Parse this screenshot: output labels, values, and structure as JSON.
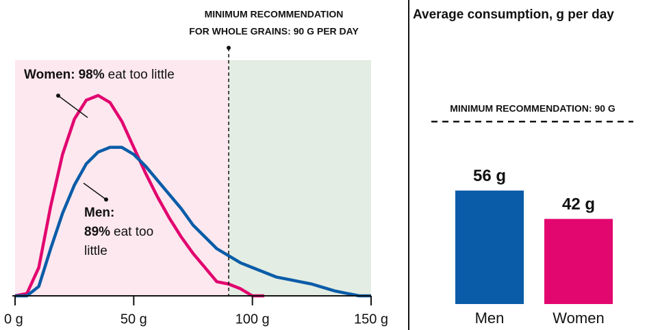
{
  "chart_data": [
    {
      "type": "line",
      "xlim": [
        0,
        150
      ],
      "xticks": [
        {
          "value": 0,
          "label": "0 g"
        },
        {
          "value": 50,
          "label": "50 g"
        },
        {
          "value": 100,
          "label": "100 g"
        },
        {
          "value": 150,
          "label": "150 g"
        }
      ],
      "ylim": [
        0,
        1
      ],
      "threshold": {
        "value": 90,
        "label_lines": [
          "MINIMUM RECOMMENDATION",
          "FOR  WHOLE GRAINS: 90 G PER DAY"
        ]
      },
      "regions": [
        {
          "from": 0,
          "to": 90,
          "color": "#fce8ee"
        },
        {
          "from": 90,
          "to": 150,
          "color": "#e3ede3"
        }
      ],
      "series": [
        {
          "name": "Women:",
          "color": "#e2066f",
          "share": "98%",
          "label_rest": "eat too little",
          "x": [
            0,
            5,
            10,
            15,
            20,
            25,
            30,
            35,
            40,
            45,
            50,
            55,
            60,
            65,
            70,
            75,
            80,
            85,
            90,
            95,
            100,
            105
          ],
          "values": [
            0,
            0.01,
            0.12,
            0.38,
            0.6,
            0.75,
            0.83,
            0.85,
            0.82,
            0.74,
            0.63,
            0.52,
            0.42,
            0.33,
            0.25,
            0.18,
            0.12,
            0.06,
            0.05,
            0.03,
            0,
            0
          ]
        },
        {
          "name": "Men:",
          "color": "#0a5ca8",
          "share": "89%",
          "label_rest": [
            "eat too",
            "little"
          ],
          "x": [
            0,
            5,
            10,
            15,
            20,
            25,
            30,
            35,
            40,
            45,
            50,
            55,
            60,
            65,
            70,
            75,
            80,
            85,
            90,
            95,
            100,
            105,
            110,
            115,
            120,
            125,
            130,
            135,
            140,
            145,
            150
          ],
          "values": [
            0,
            0,
            0.04,
            0.2,
            0.35,
            0.47,
            0.56,
            0.61,
            0.63,
            0.63,
            0.6,
            0.55,
            0.49,
            0.43,
            0.37,
            0.3,
            0.25,
            0.2,
            0.17,
            0.14,
            0.12,
            0.1,
            0.08,
            0.07,
            0.06,
            0.05,
            0.035,
            0.02,
            0.01,
            0,
            0
          ]
        }
      ]
    },
    {
      "type": "bar",
      "title": "Average consumption, g per day",
      "categories": [
        "Men",
        "Women"
      ],
      "values": [
        56,
        42
      ],
      "value_labels": [
        "56 g",
        "42 g"
      ],
      "colors": [
        "#0a5ca8",
        "#e2066f"
      ],
      "ylim": [
        0,
        90
      ],
      "reference": {
        "value": 90,
        "label": "MINIMUM RECOMMENDATION: 90 G"
      }
    }
  ]
}
